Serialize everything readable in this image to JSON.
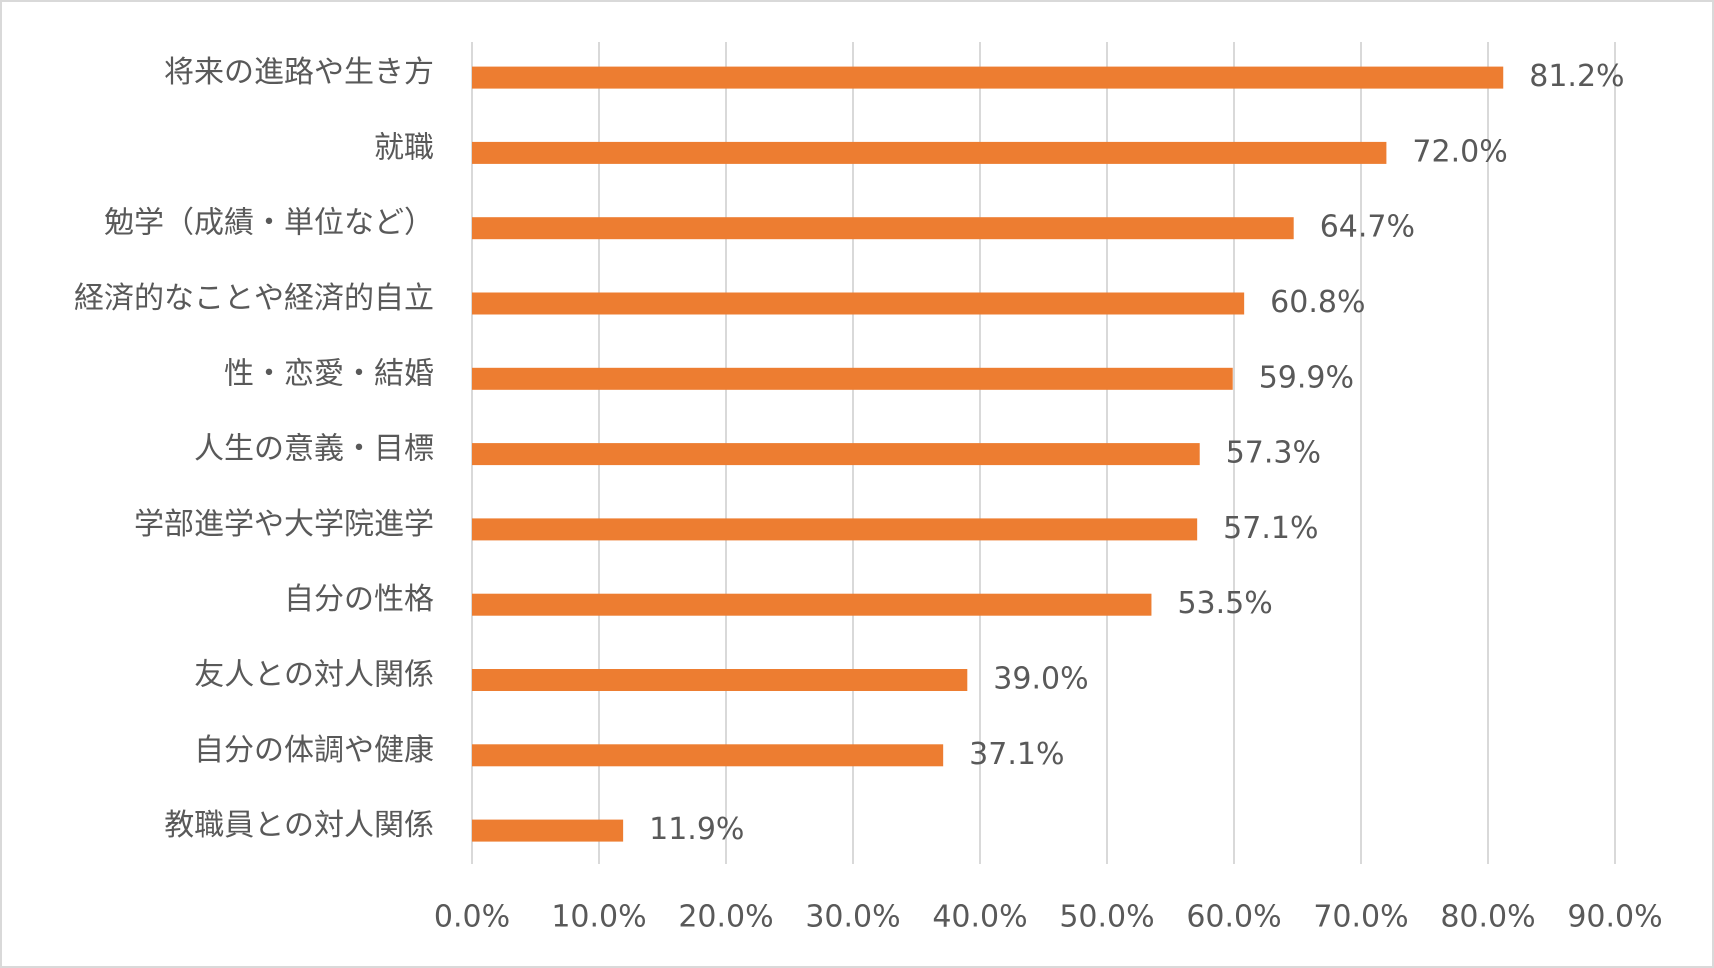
{
  "chart_data": {
    "type": "barh",
    "categories": [
      "将来の進路や生き方",
      "就職",
      "勉学（成績・単位など）",
      "経済的なことや経済的自立",
      "性・恋愛・結婚",
      "人生の意義・目標",
      "学部進学や大学院進学",
      "自分の性格",
      "友人との対人関係",
      "自分の体調や健康",
      "教職員との対人関係"
    ],
    "values": [
      81.2,
      72.0,
      64.7,
      60.8,
      59.9,
      57.3,
      57.1,
      53.5,
      39.0,
      37.1,
      11.9
    ],
    "value_labels": [
      "81.2%",
      "72.0%",
      "64.7%",
      "60.8%",
      "59.9%",
      "57.3%",
      "57.1%",
      "53.5%",
      "39.0%",
      "37.1%",
      "11.9%"
    ],
    "color": "#ed7d31",
    "xlim": [
      0,
      90
    ],
    "xticks": [
      {
        "value": 0,
        "label": "0.0%"
      },
      {
        "value": 10,
        "label": "10.0%"
      },
      {
        "value": 20,
        "label": "20.0%"
      },
      {
        "value": 30,
        "label": "30.0%"
      },
      {
        "value": 40,
        "label": "40.0%"
      },
      {
        "value": 50,
        "label": "50.0%"
      },
      {
        "value": 60,
        "label": "60.0%"
      },
      {
        "value": 70,
        "label": "70.0%"
      },
      {
        "value": 80,
        "label": "80.0%"
      },
      {
        "value": 90,
        "label": "90.0%"
      }
    ],
    "grid": true
  }
}
